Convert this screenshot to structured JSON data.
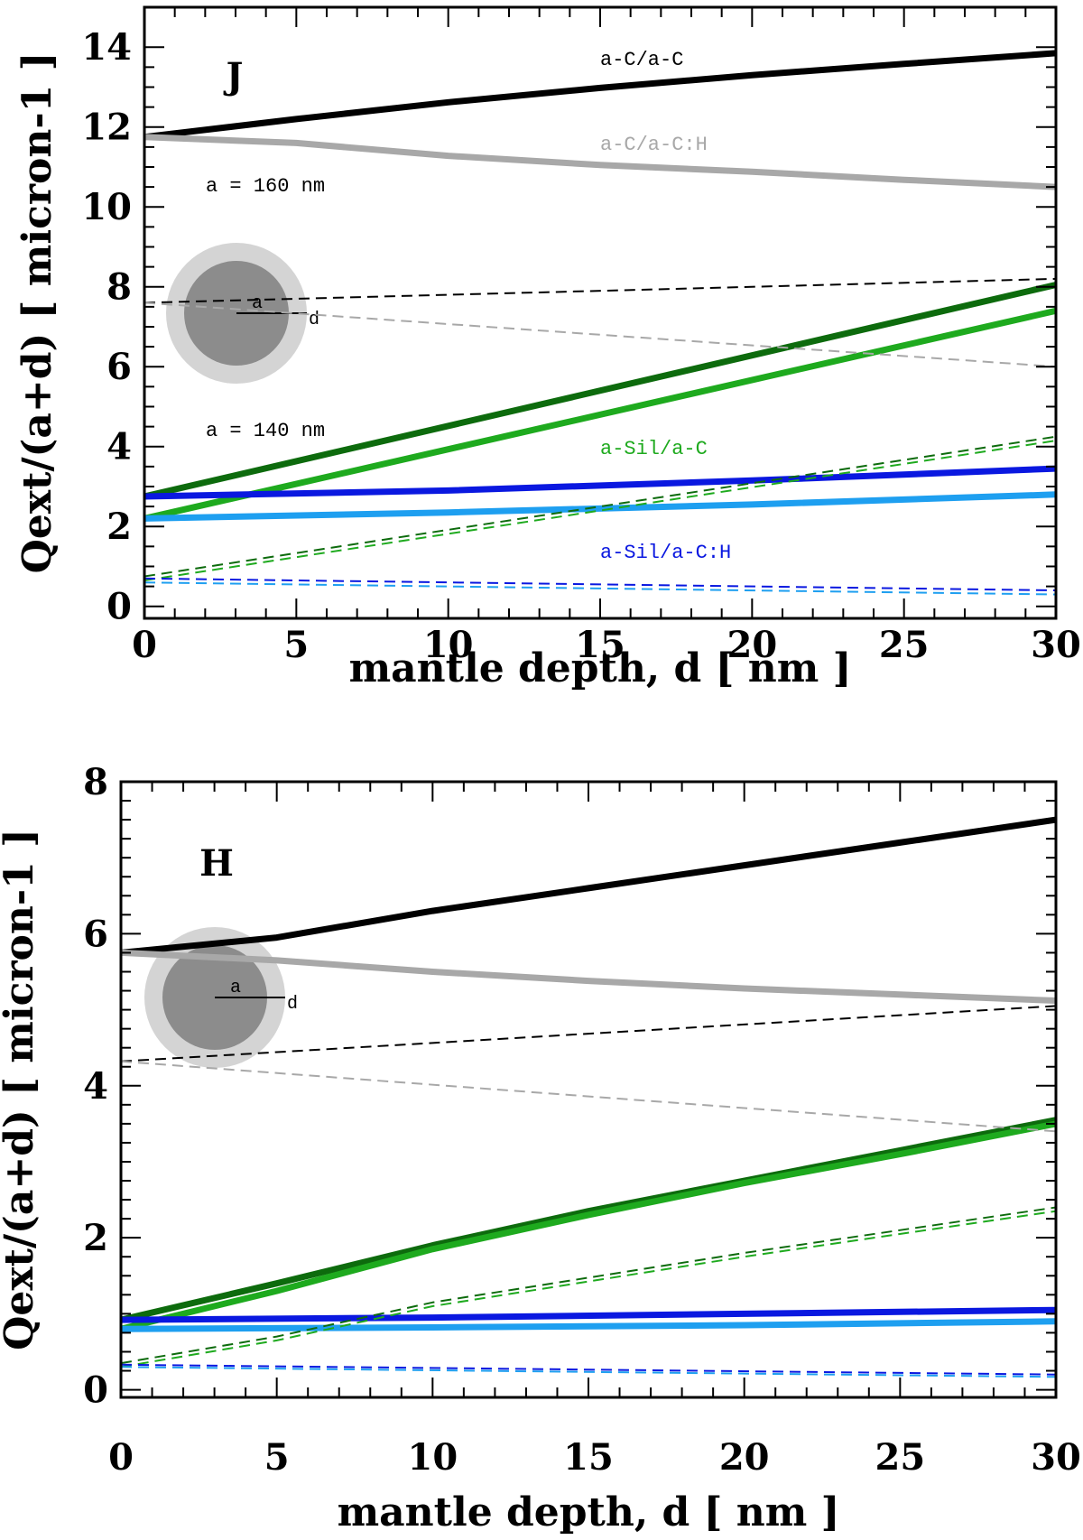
{
  "chart_data": [
    {
      "type": "line",
      "panel_label": "J",
      "xlabel": "mantle depth, d [ nm ]",
      "ylabel": "Qext/(a+d) [ micron-1 ]",
      "xlim": [
        0,
        30
      ],
      "ylim": [
        -0.3,
        15
      ],
      "xticks": [
        0,
        5,
        10,
        15,
        20,
        25,
        30
      ],
      "yticks": [
        0,
        2,
        4,
        6,
        8,
        10,
        12,
        14
      ],
      "grid": false,
      "annotations": [
        "a = 160 nm",
        "a = 140 nm"
      ],
      "sphere_labels": [
        "a",
        "d"
      ],
      "series": [
        {
          "name": "a-C/a-C",
          "color": "#000000",
          "style": "solid",
          "x": [
            0,
            5,
            10,
            15,
            20,
            25,
            30
          ],
          "y": [
            11.75,
            12.2,
            12.62,
            12.98,
            13.3,
            13.58,
            13.85
          ]
        },
        {
          "name": "a-C/a-C:H",
          "color": "#a8a8a8",
          "style": "solid",
          "x": [
            0,
            5,
            10,
            15,
            20,
            25,
            30
          ],
          "y": [
            11.75,
            11.6,
            11.28,
            11.05,
            10.88,
            10.68,
            10.5
          ]
        },
        {
          "color": "#0d6b0d",
          "style": "solid",
          "x": [
            0,
            30
          ],
          "y": [
            2.75,
            8.05
          ]
        },
        {
          "name": "a-Sil/a-C",
          "color": "#1eaa1e",
          "style": "solid",
          "x": [
            0,
            30
          ],
          "y": [
            2.2,
            7.4
          ]
        },
        {
          "name": "a-Sil/a-C:H",
          "color": "#0a18e0",
          "style": "solid",
          "x": [
            0,
            10,
            20,
            30
          ],
          "y": [
            2.75,
            2.9,
            3.15,
            3.45
          ]
        },
        {
          "color": "#1e9ff0",
          "style": "solid",
          "x": [
            0,
            10,
            20,
            30
          ],
          "y": [
            2.2,
            2.35,
            2.55,
            2.8
          ]
        },
        {
          "color": "#000000",
          "style": "dashed",
          "x": [
            0,
            30
          ],
          "y": [
            7.6,
            8.2
          ]
        },
        {
          "color": "#a8a8a8",
          "style": "dashed",
          "x": [
            0,
            30
          ],
          "y": [
            7.6,
            6.0
          ]
        },
        {
          "color": "#0d6b0d",
          "style": "dashed",
          "x": [
            0,
            30
          ],
          "y": [
            0.75,
            4.25
          ]
        },
        {
          "color": "#1eaa1e",
          "style": "dashed",
          "x": [
            0,
            30
          ],
          "y": [
            0.65,
            4.15
          ]
        },
        {
          "color": "#0a18e0",
          "style": "dashed",
          "x": [
            0,
            30
          ],
          "y": [
            0.7,
            0.4
          ]
        },
        {
          "color": "#1e9ff0",
          "style": "dashed",
          "x": [
            0,
            30
          ],
          "y": [
            0.6,
            0.3
          ]
        }
      ]
    },
    {
      "type": "line",
      "panel_label": "H",
      "xlabel": "mantle depth, d [ nm ]",
      "ylabel": "Qext/(a+d) [ micron-1 ]",
      "xlim": [
        0,
        30
      ],
      "ylim": [
        -0.1,
        8
      ],
      "xticks": [
        0,
        5,
        10,
        15,
        20,
        25,
        30
      ],
      "yticks": [
        0,
        2,
        4,
        6,
        8
      ],
      "grid": false,
      "sphere_labels": [
        "a",
        "d"
      ],
      "series": [
        {
          "color": "#000000",
          "style": "solid",
          "x": [
            0,
            5,
            10,
            15,
            20,
            25,
            30
          ],
          "y": [
            5.75,
            5.95,
            6.3,
            6.6,
            6.9,
            7.2,
            7.5
          ]
        },
        {
          "color": "#a8a8a8",
          "style": "solid",
          "x": [
            0,
            5,
            10,
            15,
            20,
            25,
            30
          ],
          "y": [
            5.75,
            5.65,
            5.5,
            5.38,
            5.28,
            5.2,
            5.12
          ]
        },
        {
          "color": "#0d6b0d",
          "style": "solid",
          "x": [
            0,
            5,
            10,
            15,
            20,
            25,
            30
          ],
          "y": [
            0.92,
            1.4,
            1.9,
            2.35,
            2.75,
            3.15,
            3.55
          ]
        },
        {
          "color": "#1eaa1e",
          "style": "solid",
          "x": [
            0,
            5,
            10,
            15,
            20,
            25,
            30
          ],
          "y": [
            0.8,
            1.3,
            1.85,
            2.3,
            2.72,
            3.1,
            3.5
          ]
        },
        {
          "color": "#0a18e0",
          "style": "solid",
          "x": [
            0,
            10,
            20,
            30
          ],
          "y": [
            0.92,
            0.95,
            1.0,
            1.05
          ]
        },
        {
          "color": "#1e9ff0",
          "style": "solid",
          "x": [
            0,
            10,
            20,
            30
          ],
          "y": [
            0.8,
            0.82,
            0.85,
            0.9
          ]
        },
        {
          "color": "#000000",
          "style": "dashed",
          "x": [
            0,
            30
          ],
          "y": [
            4.32,
            5.05
          ]
        },
        {
          "color": "#a8a8a8",
          "style": "dashed",
          "x": [
            0,
            30
          ],
          "y": [
            4.32,
            3.4
          ]
        },
        {
          "color": "#0d6b0d",
          "style": "dashed",
          "x": [
            0,
            5,
            10,
            20,
            30
          ],
          "y": [
            0.35,
            0.7,
            1.15,
            1.8,
            2.4
          ]
        },
        {
          "color": "#1eaa1e",
          "style": "dashed",
          "x": [
            0,
            5,
            10,
            20,
            30
          ],
          "y": [
            0.3,
            0.65,
            1.1,
            1.75,
            2.35
          ]
        },
        {
          "color": "#0a18e0",
          "style": "dashed",
          "x": [
            0,
            30
          ],
          "y": [
            0.33,
            0.2
          ]
        },
        {
          "color": "#1e9ff0",
          "style": "dashed",
          "x": [
            0,
            30
          ],
          "y": [
            0.3,
            0.17
          ]
        }
      ]
    }
  ]
}
